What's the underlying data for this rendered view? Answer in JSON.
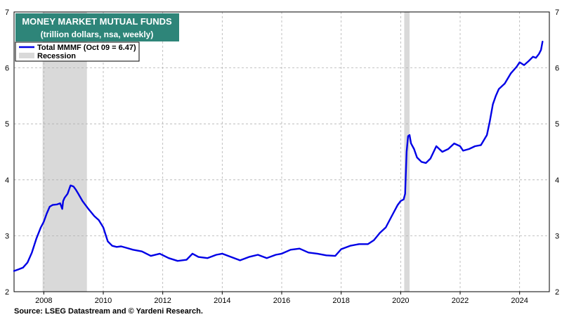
{
  "chart_data": {
    "type": "line",
    "title": "MONEY MARKET MUTUAL FUNDS",
    "subtitle": "(trillion dollars, nsa, weekly)",
    "xlabel": "",
    "ylabel": "",
    "xlim": [
      2007.0,
      2025.0
    ],
    "ylim": [
      2,
      7
    ],
    "x_ticks": [
      2008,
      2010,
      2012,
      2014,
      2016,
      2018,
      2020,
      2022,
      2024
    ],
    "x_tick_labels": [
      "2008",
      "2010",
      "2012",
      "2014",
      "2016",
      "2018",
      "2020",
      "2022",
      "2024"
    ],
    "y_ticks": [
      2,
      3,
      4,
      5,
      6,
      7
    ],
    "y_tick_labels": [
      "2",
      "3",
      "4",
      "5",
      "6",
      "7"
    ],
    "grid": true,
    "legend_position": "top-left",
    "legend": [
      {
        "label": "Total MMMF (Oct 09 = 6.47)",
        "kind": "line",
        "color": "#0000e6"
      },
      {
        "label": "Recession",
        "kind": "band",
        "color": "#d9d9d9"
      }
    ],
    "recessions": [
      [
        2007.96,
        2009.45
      ],
      [
        2020.12,
        2020.3
      ]
    ],
    "series": [
      {
        "name": "Total MMMF (Oct 09 = 6.47)",
        "color": "#0000e6",
        "x": [
          2007.0,
          2007.15,
          2007.3,
          2007.45,
          2007.6,
          2007.75,
          2007.9,
          2008.0,
          2008.1,
          2008.2,
          2008.3,
          2008.45,
          2008.55,
          2008.62,
          2008.65,
          2008.7,
          2008.8,
          2008.9,
          2009.0,
          2009.08,
          2009.15,
          2009.3,
          2009.5,
          2009.7,
          2009.85,
          2010.0,
          2010.15,
          2010.3,
          2010.45,
          2010.6,
          2010.8,
          2011.0,
          2011.3,
          2011.6,
          2011.9,
          2012.2,
          2012.5,
          2012.8,
          2013.0,
          2013.2,
          2013.5,
          2013.8,
          2014.0,
          2014.3,
          2014.6,
          2014.9,
          2015.2,
          2015.5,
          2015.8,
          2016.0,
          2016.3,
          2016.6,
          2016.9,
          2017.2,
          2017.5,
          2017.8,
          2018.0,
          2018.3,
          2018.6,
          2018.9,
          2019.1,
          2019.3,
          2019.5,
          2019.7,
          2019.9,
          2020.0,
          2020.1,
          2020.15,
          2020.2,
          2020.25,
          2020.3,
          2020.35,
          2020.45,
          2020.55,
          2020.7,
          2020.85,
          2021.0,
          2021.2,
          2021.4,
          2021.6,
          2021.8,
          2022.0,
          2022.1,
          2022.3,
          2022.5,
          2022.7,
          2022.9,
          2023.0,
          2023.1,
          2023.2,
          2023.3,
          2023.5,
          2023.7,
          2023.9,
          2024.0,
          2024.15,
          2024.3,
          2024.45,
          2024.55,
          2024.65,
          2024.72,
          2024.77
        ],
        "values": [
          2.37,
          2.4,
          2.43,
          2.52,
          2.7,
          2.95,
          3.15,
          3.25,
          3.4,
          3.52,
          3.55,
          3.56,
          3.58,
          3.48,
          3.62,
          3.68,
          3.75,
          3.9,
          3.88,
          3.82,
          3.76,
          3.62,
          3.48,
          3.35,
          3.28,
          3.15,
          2.9,
          2.82,
          2.8,
          2.81,
          2.78,
          2.75,
          2.72,
          2.64,
          2.68,
          2.6,
          2.55,
          2.57,
          2.68,
          2.62,
          2.6,
          2.66,
          2.68,
          2.62,
          2.56,
          2.62,
          2.66,
          2.6,
          2.66,
          2.68,
          2.75,
          2.77,
          2.7,
          2.68,
          2.65,
          2.64,
          2.76,
          2.82,
          2.85,
          2.85,
          2.92,
          3.05,
          3.15,
          3.35,
          3.55,
          3.62,
          3.65,
          3.75,
          4.5,
          4.78,
          4.8,
          4.65,
          4.55,
          4.4,
          4.32,
          4.3,
          4.38,
          4.6,
          4.5,
          4.55,
          4.65,
          4.6,
          4.52,
          4.55,
          4.6,
          4.62,
          4.8,
          5.05,
          5.35,
          5.5,
          5.62,
          5.72,
          5.9,
          6.02,
          6.1,
          6.05,
          6.12,
          6.2,
          6.18,
          6.25,
          6.32,
          6.47
        ]
      }
    ]
  },
  "source": "Source: LSEG Datastream and © Yardeni Research."
}
